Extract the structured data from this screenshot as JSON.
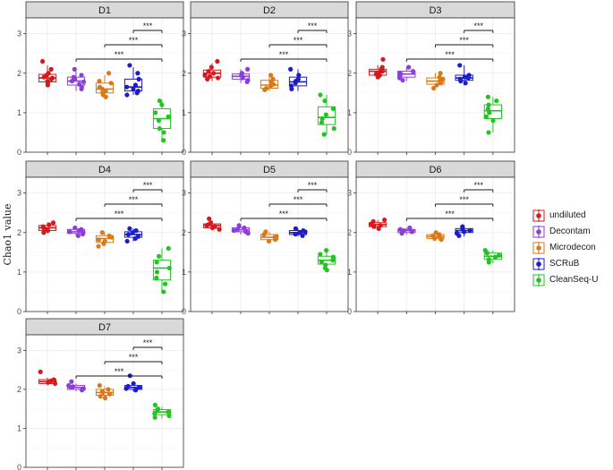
{
  "chart_data": {
    "type": "box",
    "ylabel": "Chao1 value",
    "ylim": [
      0,
      3.4
    ],
    "yticks": [
      0,
      1,
      2,
      3
    ],
    "grid": true,
    "legend_position": "right",
    "significance_label": "***",
    "comparisons": [
      [
        "Decontam",
        "CleanSeq-U"
      ],
      [
        "Microdecon",
        "CleanSeq-U"
      ],
      [
        "SCRuB",
        "CleanSeq-U"
      ]
    ],
    "series": [
      {
        "name": "undiluted",
        "color": "#d7191c"
      },
      {
        "name": "Decontam",
        "color": "#8c3fd6"
      },
      {
        "name": "Microdecon",
        "color": "#d97a1a"
      },
      {
        "name": "SCRuB",
        "color": "#1c1cc8"
      },
      {
        "name": "CleanSeq-U",
        "color": "#22c422"
      }
    ],
    "panels": [
      {
        "label": "D1",
        "boxes": [
          {
            "q1": 1.78,
            "median": 1.88,
            "q3": 1.97,
            "low": 1.65,
            "high": 2.2,
            "points": [
              2.3,
              2.1,
              2.0,
              1.95,
              1.9,
              1.88,
              1.85,
              1.8,
              1.75,
              1.7
            ]
          },
          {
            "q1": 1.7,
            "median": 1.8,
            "q3": 1.9,
            "low": 1.55,
            "high": 2.05,
            "points": [
              2.1,
              1.95,
              1.9,
              1.85,
              1.8,
              1.78,
              1.72,
              1.65,
              1.6
            ]
          },
          {
            "q1": 1.5,
            "median": 1.6,
            "q3": 1.75,
            "low": 1.4,
            "high": 1.95,
            "points": [
              2.0,
              1.8,
              1.75,
              1.65,
              1.6,
              1.55,
              1.5,
              1.45,
              1.4
            ]
          },
          {
            "q1": 1.55,
            "median": 1.65,
            "q3": 1.85,
            "low": 1.45,
            "high": 2.15,
            "points": [
              2.2,
              2.0,
              1.85,
              1.7,
              1.65,
              1.6,
              1.55,
              1.5,
              1.45
            ]
          },
          {
            "q1": 0.6,
            "median": 0.85,
            "q3": 1.1,
            "low": 0.3,
            "high": 1.3,
            "points": [
              1.3,
              1.2,
              1.0,
              0.9,
              0.8,
              0.6,
              0.5,
              0.3
            ]
          }
        ]
      },
      {
        "label": "D2",
        "boxes": [
          {
            "q1": 1.9,
            "median": 2.0,
            "q3": 2.08,
            "low": 1.8,
            "high": 2.25,
            "points": [
              2.3,
              2.15,
              2.05,
              2.0,
              1.95,
              1.92,
              1.88,
              1.85
            ]
          },
          {
            "q1": 1.85,
            "median": 1.92,
            "q3": 1.98,
            "low": 1.75,
            "high": 2.1,
            "points": [
              2.1,
              2.0,
              1.95,
              1.9,
              1.88,
              1.82,
              1.78
            ]
          },
          {
            "q1": 1.62,
            "median": 1.7,
            "q3": 1.82,
            "low": 1.55,
            "high": 1.95,
            "points": [
              1.95,
              1.85,
              1.78,
              1.72,
              1.68,
              1.62,
              1.58
            ]
          },
          {
            "q1": 1.68,
            "median": 1.78,
            "q3": 1.9,
            "low": 1.55,
            "high": 2.1,
            "points": [
              2.1,
              1.95,
              1.85,
              1.8,
              1.75,
              1.68,
              1.6
            ]
          },
          {
            "q1": 0.7,
            "median": 0.88,
            "q3": 1.15,
            "low": 0.45,
            "high": 1.45,
            "points": [
              1.45,
              1.3,
              1.1,
              0.95,
              0.85,
              0.75,
              0.6,
              0.45
            ]
          }
        ]
      },
      {
        "label": "D3",
        "boxes": [
          {
            "q1": 1.95,
            "median": 2.05,
            "q3": 2.1,
            "low": 1.88,
            "high": 2.2,
            "points": [
              2.35,
              2.15,
              2.1,
              2.05,
              2.02,
              1.98,
              1.95,
              1.9
            ]
          },
          {
            "q1": 1.9,
            "median": 1.98,
            "q3": 2.05,
            "low": 1.8,
            "high": 2.15,
            "points": [
              2.15,
              2.05,
              2.0,
              1.98,
              1.92,
              1.88,
              1.82
            ]
          },
          {
            "q1": 1.72,
            "median": 1.8,
            "q3": 1.88,
            "low": 1.6,
            "high": 2.0,
            "points": [
              2.0,
              1.9,
              1.85,
              1.8,
              1.75,
              1.7,
              1.62
            ]
          },
          {
            "q1": 1.82,
            "median": 1.88,
            "q3": 1.95,
            "low": 1.7,
            "high": 2.2,
            "points": [
              2.2,
              1.95,
              1.9,
              1.88,
              1.85,
              1.8,
              1.75
            ]
          },
          {
            "q1": 0.85,
            "median": 1.05,
            "q3": 1.2,
            "low": 0.5,
            "high": 1.4,
            "points": [
              1.4,
              1.3,
              1.2,
              1.1,
              1.0,
              0.9,
              0.8,
              0.5
            ]
          }
        ]
      },
      {
        "label": "D4",
        "boxes": [
          {
            "q1": 2.05,
            "median": 2.12,
            "q3": 2.18,
            "low": 1.98,
            "high": 2.25,
            "points": [
              2.25,
              2.2,
              2.15,
              2.12,
              2.08,
              2.05,
              2.0
            ]
          },
          {
            "q1": 1.98,
            "median": 2.02,
            "q3": 2.08,
            "low": 1.92,
            "high": 2.12,
            "points": [
              2.12,
              2.08,
              2.05,
              2.02,
              2.0,
              1.96,
              1.92
            ]
          },
          {
            "q1": 1.75,
            "median": 1.85,
            "q3": 1.92,
            "low": 1.65,
            "high": 2.0,
            "points": [
              2.0,
              1.92,
              1.88,
              1.82,
              1.78,
              1.72,
              1.65
            ]
          },
          {
            "q1": 1.88,
            "median": 1.95,
            "q3": 2.02,
            "low": 1.78,
            "high": 2.1,
            "points": [
              2.1,
              2.05,
              2.0,
              1.95,
              1.9,
              1.85,
              1.78
            ]
          },
          {
            "q1": 0.8,
            "median": 1.1,
            "q3": 1.3,
            "low": 0.5,
            "high": 1.6,
            "points": [
              1.6,
              1.4,
              1.25,
              1.1,
              1.0,
              0.85,
              0.7,
              0.5
            ]
          }
        ]
      },
      {
        "label": "D5",
        "boxes": [
          {
            "q1": 2.12,
            "median": 2.18,
            "q3": 2.22,
            "low": 2.05,
            "high": 2.3,
            "points": [
              2.35,
              2.25,
              2.2,
              2.18,
              2.15,
              2.12,
              2.08
            ]
          },
          {
            "q1": 2.02,
            "median": 2.07,
            "q3": 2.12,
            "low": 1.95,
            "high": 2.18,
            "points": [
              2.18,
              2.12,
              2.08,
              2.05,
              2.02,
              1.98
            ]
          },
          {
            "q1": 1.82,
            "median": 1.88,
            "q3": 1.95,
            "low": 1.75,
            "high": 2.02,
            "points": [
              2.02,
              1.95,
              1.9,
              1.88,
              1.82,
              1.78
            ]
          },
          {
            "q1": 1.95,
            "median": 2.0,
            "q3": 2.05,
            "low": 1.9,
            "high": 2.1,
            "points": [
              2.1,
              2.05,
              2.02,
              2.0,
              1.96,
              1.92
            ]
          },
          {
            "q1": 1.2,
            "median": 1.3,
            "q3": 1.4,
            "low": 1.05,
            "high": 1.55,
            "points": [
              1.55,
              1.45,
              1.38,
              1.3,
              1.25,
              1.18,
              1.1,
              1.05
            ]
          }
        ]
      },
      {
        "label": "D6",
        "boxes": [
          {
            "q1": 2.15,
            "median": 2.2,
            "q3": 2.25,
            "low": 2.08,
            "high": 2.32,
            "points": [
              2.32,
              2.28,
              2.22,
              2.2,
              2.18,
              2.15,
              2.1
            ]
          },
          {
            "q1": 2.0,
            "median": 2.05,
            "q3": 2.08,
            "low": 1.95,
            "high": 2.12,
            "points": [
              2.12,
              2.08,
              2.05,
              2.02,
              1.98
            ]
          },
          {
            "q1": 1.85,
            "median": 1.9,
            "q3": 1.95,
            "low": 1.8,
            "high": 2.0,
            "points": [
              2.0,
              1.95,
              1.92,
              1.88,
              1.85,
              1.82
            ]
          },
          {
            "q1": 2.0,
            "median": 2.05,
            "q3": 2.1,
            "low": 1.9,
            "high": 2.15,
            "points": [
              2.15,
              2.1,
              2.05,
              2.02,
              1.98,
              1.92
            ]
          },
          {
            "q1": 1.32,
            "median": 1.4,
            "q3": 1.48,
            "low": 1.22,
            "high": 1.55,
            "points": [
              1.55,
              1.48,
              1.42,
              1.38,
              1.32,
              1.25
            ]
          }
        ]
      },
      {
        "label": "D7",
        "boxes": [
          {
            "q1": 2.15,
            "median": 2.2,
            "q3": 2.25,
            "low": 2.1,
            "high": 2.3,
            "points": [
              2.45,
              2.25,
              2.22,
              2.2,
              2.18,
              2.15
            ]
          },
          {
            "q1": 2.0,
            "median": 2.05,
            "q3": 2.1,
            "low": 1.95,
            "high": 2.15,
            "points": [
              2.2,
              2.1,
              2.07,
              2.05,
              2.02,
              1.98
            ]
          },
          {
            "q1": 1.85,
            "median": 1.92,
            "q3": 2.0,
            "low": 1.78,
            "high": 2.08,
            "points": [
              2.1,
              2.0,
              1.95,
              1.92,
              1.88,
              1.82,
              1.78
            ]
          },
          {
            "q1": 2.0,
            "median": 2.05,
            "q3": 2.1,
            "low": 1.95,
            "high": 2.2,
            "points": [
              2.35,
              2.15,
              2.08,
              2.05,
              2.02,
              1.98
            ]
          },
          {
            "q1": 1.35,
            "median": 1.42,
            "q3": 1.48,
            "low": 1.25,
            "high": 1.55,
            "points": [
              1.6,
              1.5,
              1.45,
              1.42,
              1.38,
              1.32,
              1.28
            ]
          }
        ]
      }
    ]
  }
}
